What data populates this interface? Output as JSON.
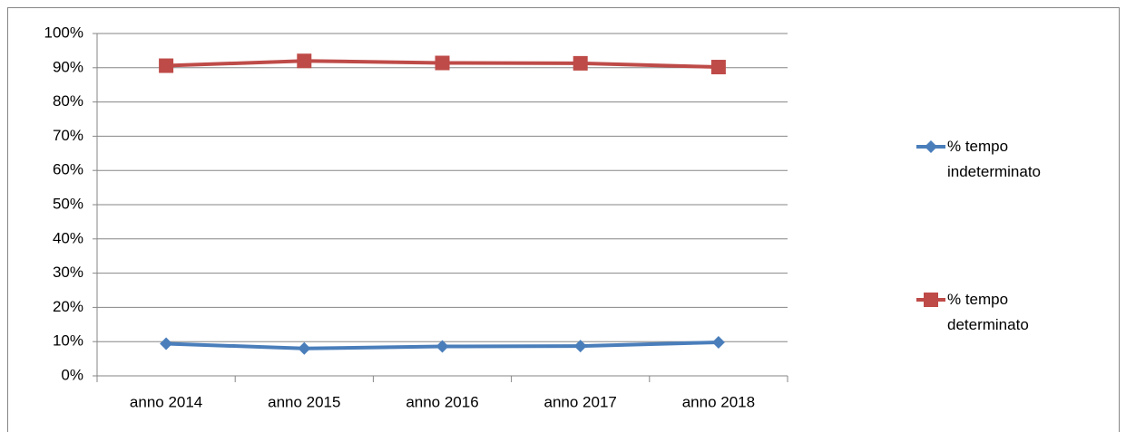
{
  "chart_data": {
    "type": "line",
    "categories": [
      "anno 2014",
      "anno 2015",
      "anno 2016",
      "anno 2017",
      "anno 2018"
    ],
    "series": [
      {
        "name": "% tempo indeterminato",
        "color": "#4a7ebb",
        "values": [
          9.4,
          8.0,
          8.6,
          8.7,
          9.8
        ]
      },
      {
        "name": "% tempo determinato",
        "color": "#be4b48",
        "values": [
          90.6,
          92.0,
          91.4,
          91.3,
          90.2
        ]
      }
    ],
    "ylim": [
      0,
      100
    ],
    "yticks": [
      {
        "value": 0,
        "label": "0%"
      },
      {
        "value": 10,
        "label": "10%"
      },
      {
        "value": 20,
        "label": "20%"
      },
      {
        "value": 30,
        "label": "30%"
      },
      {
        "value": 40,
        "label": "40%"
      },
      {
        "value": 50,
        "label": "50%"
      },
      {
        "value": 60,
        "label": "60%"
      },
      {
        "value": 70,
        "label": "70%"
      },
      {
        "value": 80,
        "label": "80%"
      },
      {
        "value": 90,
        "label": "90%"
      },
      {
        "value": 100,
        "label": "100%"
      }
    ],
    "grid": true,
    "legend": "right"
  }
}
